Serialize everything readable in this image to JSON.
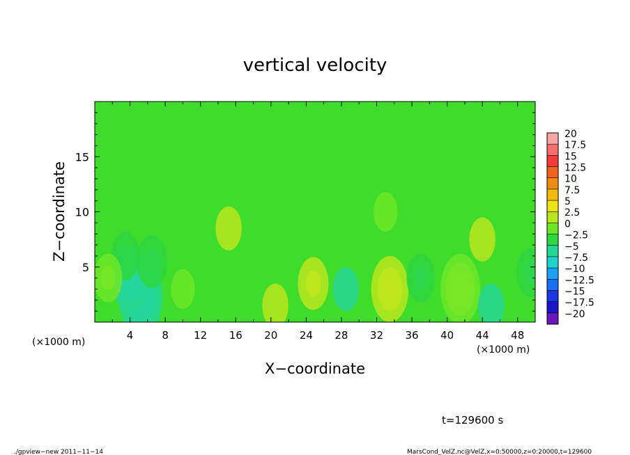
{
  "chart_data": {
    "type": "heatmap",
    "title": "vertical velocity",
    "xlabel": "X−coordinate",
    "ylabel": "Z−coordinate",
    "x_unit": "(×1000 m)",
    "y_unit": "(×1000 m)",
    "xlim": [
      0,
      50
    ],
    "ylim": [
      0,
      20
    ],
    "x_ticks": [
      4,
      8,
      12,
      16,
      20,
      24,
      28,
      32,
      36,
      40,
      44,
      48
    ],
    "y_ticks": [
      5,
      10,
      15
    ],
    "colorbar": {
      "levels": [
        20,
        17.5,
        15,
        12.5,
        10,
        7.5,
        5,
        2.5,
        0,
        -2.5,
        -5,
        -7.5,
        -10,
        -12.5,
        -15,
        -17.5,
        -20
      ],
      "labels": [
        "20",
        "17.5",
        "15",
        "12.5",
        "10",
        "7.5",
        "5",
        "2.5",
        "0",
        "−2.5",
        "−5",
        "−7.5",
        "−10",
        "−12.5",
        "−15",
        "−17.5",
        "−20"
      ],
      "colors": [
        "#f7a6a6",
        "#f46e6e",
        "#f23a3a",
        "#f0621e",
        "#f08c14",
        "#f2b80c",
        "#eee316",
        "#b8e61e",
        "#6ee628",
        "#2ed640",
        "#26d694",
        "#20d2cc",
        "#1aa2f2",
        "#1870f0",
        "#1a38e6",
        "#1a16c8",
        "#6a16b8"
      ]
    },
    "features": [
      {
        "x": 5.2,
        "z": 2.3,
        "w": -11
      },
      {
        "x": 4.2,
        "z": 3.8,
        "w": -8
      },
      {
        "x": 6.5,
        "z": 5.5,
        "w": -5
      },
      {
        "x": 3.5,
        "z": 6.0,
        "w": -4
      },
      {
        "x": 1.5,
        "z": 4.0,
        "w": 4
      },
      {
        "x": 15.2,
        "z": 8.5,
        "w": 3
      },
      {
        "x": 24.8,
        "z": 3.5,
        "w": 5
      },
      {
        "x": 20.5,
        "z": 1.5,
        "w": 3
      },
      {
        "x": 33.5,
        "z": 3.0,
        "w": 8
      },
      {
        "x": 41.5,
        "z": 3.0,
        "w": 9
      },
      {
        "x": 44.0,
        "z": 7.5,
        "w": 3
      },
      {
        "x": 37.0,
        "z": 4.0,
        "w": -4
      },
      {
        "x": 28.5,
        "z": 3.0,
        "w": -3
      },
      {
        "x": 45.0,
        "z": 1.5,
        "w": -3
      },
      {
        "x": 49.5,
        "z": 4.5,
        "w": -4
      },
      {
        "x": 33.0,
        "z": 10.0,
        "w": 2
      },
      {
        "x": 10.0,
        "z": 3.0,
        "w": 2
      }
    ]
  },
  "annotations": {
    "time": "t=129600 s",
    "footer_left": "./gpview−new   2011−11−14",
    "footer_right": "MarsCond_VelZ.nc@VelZ,x=0:50000,z=0:20000,t=129600"
  }
}
